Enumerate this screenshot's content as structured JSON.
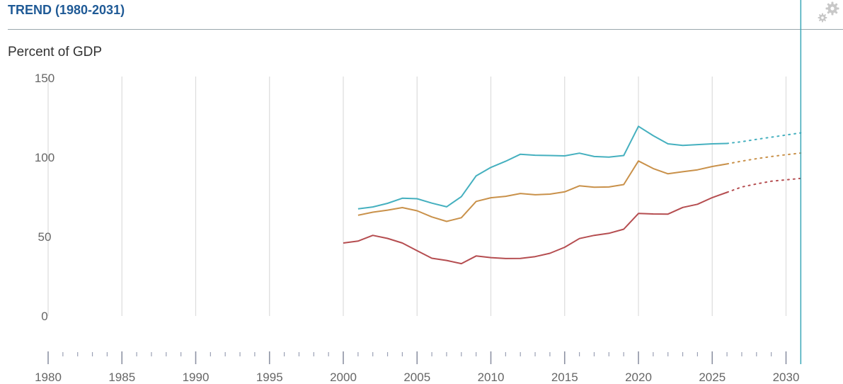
{
  "header": {
    "title": "TREND (1980-2031)",
    "settings_icon": "gears-icon"
  },
  "colors": {
    "title": "#1f5a96",
    "grid": "#dcdcdc",
    "cursor": "#3aa7b8",
    "series_top": "#45b0bf",
    "series_mid": "#c9914a",
    "series_bottom": "#b54d50"
  },
  "chart_data": {
    "type": "line",
    "ylabel": "Percent of GDP",
    "ylim": [
      0,
      150
    ],
    "xlim": [
      1980,
      2031
    ],
    "y_ticks": [
      0,
      50,
      100,
      150
    ],
    "x_ticks": [
      1980,
      1985,
      1990,
      1995,
      2000,
      2005,
      2010,
      2015,
      2020,
      2025,
      2030
    ],
    "projection_start": 2026,
    "grid": true,
    "cursor_year": 2031,
    "series": [
      {
        "color": "#45b0bf",
        "x": [
          2001,
          2002,
          2003,
          2004,
          2005,
          2006,
          2007,
          2008,
          2009,
          2010,
          2011,
          2012,
          2013,
          2014,
          2015,
          2016,
          2017,
          2018,
          2019,
          2020,
          2021,
          2022,
          2023,
          2024,
          2025,
          2026,
          2027,
          2028,
          2029,
          2030,
          2031
        ],
        "y": [
          67.5,
          68.7,
          71,
          74.2,
          73.9,
          71.1,
          68.8,
          75.2,
          88.3,
          93.6,
          97.5,
          101.9,
          101.3,
          101.1,
          100.9,
          102.6,
          100.5,
          100.1,
          101.1,
          119.5,
          113.6,
          108.5,
          107.5,
          108,
          108.5,
          108.7,
          109.8,
          111.3,
          112.7,
          114,
          115.4
        ]
      },
      {
        "color": "#c9914a",
        "x": [
          2001,
          2002,
          2003,
          2004,
          2005,
          2006,
          2007,
          2008,
          2009,
          2010,
          2011,
          2012,
          2013,
          2014,
          2015,
          2016,
          2017,
          2018,
          2019,
          2020,
          2021,
          2022,
          2023,
          2024,
          2025,
          2026,
          2027,
          2028,
          2029,
          2030,
          2031
        ],
        "y": [
          63.5,
          65.4,
          66.7,
          68.3,
          66.3,
          62.4,
          59.6,
          61.9,
          72.2,
          74.5,
          75.4,
          77.2,
          76.4,
          76.8,
          78.2,
          82,
          81.1,
          81.3,
          82.8,
          97.7,
          92.9,
          89.6,
          90.9,
          92.1,
          94.2,
          95.8,
          97.6,
          99.1,
          100.5,
          101.6,
          102.7
        ]
      },
      {
        "color": "#b54d50",
        "x": [
          2000,
          2001,
          2002,
          2003,
          2004,
          2005,
          2006,
          2007,
          2008,
          2009,
          2010,
          2011,
          2012,
          2013,
          2014,
          2015,
          2016,
          2017,
          2018,
          2019,
          2020,
          2021,
          2022,
          2023,
          2024,
          2025,
          2026,
          2027,
          2028,
          2029,
          2030,
          2031
        ],
        "y": [
          46,
          47.2,
          50.8,
          48.9,
          46,
          41.1,
          36.4,
          35,
          33,
          37.8,
          36.8,
          36.2,
          36.3,
          37.4,
          39.5,
          43.3,
          48.8,
          50.8,
          52.1,
          54.7,
          64.6,
          64.3,
          64.2,
          68.4,
          70.4,
          74.6,
          77.9,
          81.3,
          83.2,
          84.9,
          85.8,
          86.7
        ]
      }
    ]
  }
}
